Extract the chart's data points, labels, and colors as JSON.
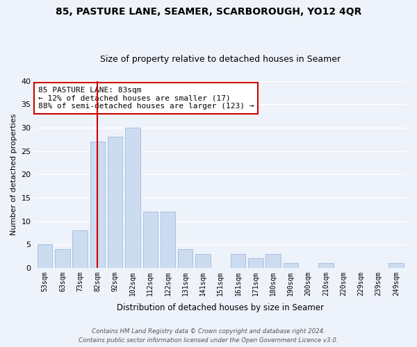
{
  "title": "85, PASTURE LANE, SEAMER, SCARBOROUGH, YO12 4QR",
  "subtitle": "Size of property relative to detached houses in Seamer",
  "xlabel": "Distribution of detached houses by size in Seamer",
  "ylabel": "Number of detached properties",
  "bar_labels": [
    "53sqm",
    "63sqm",
    "73sqm",
    "82sqm",
    "92sqm",
    "102sqm",
    "112sqm",
    "122sqm",
    "131sqm",
    "141sqm",
    "151sqm",
    "161sqm",
    "171sqm",
    "180sqm",
    "190sqm",
    "200sqm",
    "210sqm",
    "220sqm",
    "229sqm",
    "239sqm",
    "249sqm"
  ],
  "bar_values": [
    5,
    4,
    8,
    27,
    28,
    30,
    12,
    12,
    4,
    3,
    0,
    3,
    2,
    3,
    1,
    0,
    1,
    0,
    0,
    0,
    1
  ],
  "bar_color": "#ccdcf0",
  "bar_edge_color": "#a8c0e0",
  "vline_index": 3,
  "vline_color": "#cc0000",
  "annotation_title": "85 PASTURE LANE: 83sqm",
  "annotation_line1": "← 12% of detached houses are smaller (17)",
  "annotation_line2": "88% of semi-detached houses are larger (123) →",
  "annotation_box_color": "#ffffff",
  "annotation_box_edge": "#cc0000",
  "ylim": [
    0,
    40
  ],
  "yticks": [
    0,
    5,
    10,
    15,
    20,
    25,
    30,
    35,
    40
  ],
  "footer1": "Contains HM Land Registry data © Crown copyright and database right 2024.",
  "footer2": "Contains public sector information licensed under the Open Government Licence v3.0.",
  "bg_color": "#eef2fa",
  "grid_color": "#ffffff",
  "title_fontsize": 10,
  "subtitle_fontsize": 9
}
